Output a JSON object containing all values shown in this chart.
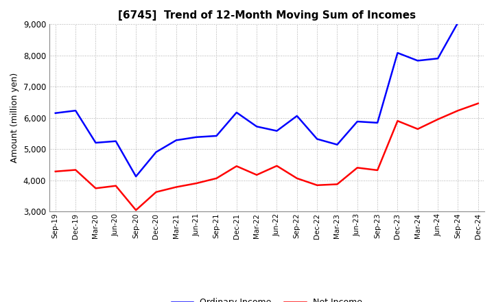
{
  "title": "[6745]  Trend of 12-Month Moving Sum of Incomes",
  "ylabel": "Amount (million yen)",
  "ylim": [
    3000,
    9000
  ],
  "yticks": [
    3000,
    4000,
    5000,
    6000,
    7000,
    8000,
    9000
  ],
  "background_color": "#ffffff",
  "plot_bg_color": "#ffffff",
  "x_labels": [
    "Sep-19",
    "Dec-19",
    "Mar-20",
    "Jun-20",
    "Sep-20",
    "Dec-20",
    "Mar-21",
    "Jun-21",
    "Sep-21",
    "Dec-21",
    "Mar-22",
    "Jun-22",
    "Sep-22",
    "Dec-22",
    "Mar-23",
    "Jun-23",
    "Sep-23",
    "Dec-23",
    "Mar-24",
    "Jun-24",
    "Sep-24",
    "Dec-24"
  ],
  "ordinary_income": [
    6150,
    6230,
    5200,
    5250,
    4120,
    4900,
    5280,
    5380,
    5420,
    6170,
    5720,
    5580,
    6060,
    5320,
    5140,
    5880,
    5840,
    8080,
    7830,
    7900,
    9050,
    9050
  ],
  "net_income": [
    4280,
    4330,
    3740,
    3820,
    3040,
    3620,
    3780,
    3900,
    4060,
    4450,
    4170,
    4460,
    4060,
    3840,
    3870,
    4400,
    4320,
    5900,
    5640,
    5950,
    6230,
    6460
  ],
  "ordinary_color": "#0000ff",
  "net_color": "#ff0000",
  "line_width": 1.8,
  "title_fontsize": 11,
  "ylabel_fontsize": 9,
  "xtick_fontsize": 7.5,
  "ytick_fontsize": 8.5,
  "legend_labels": [
    "Ordinary Income",
    "Net Income"
  ],
  "legend_fontsize": 9,
  "grid_color": "#aaaaaa",
  "grid_linestyle": "dotted",
  "grid_linewidth": 0.7
}
